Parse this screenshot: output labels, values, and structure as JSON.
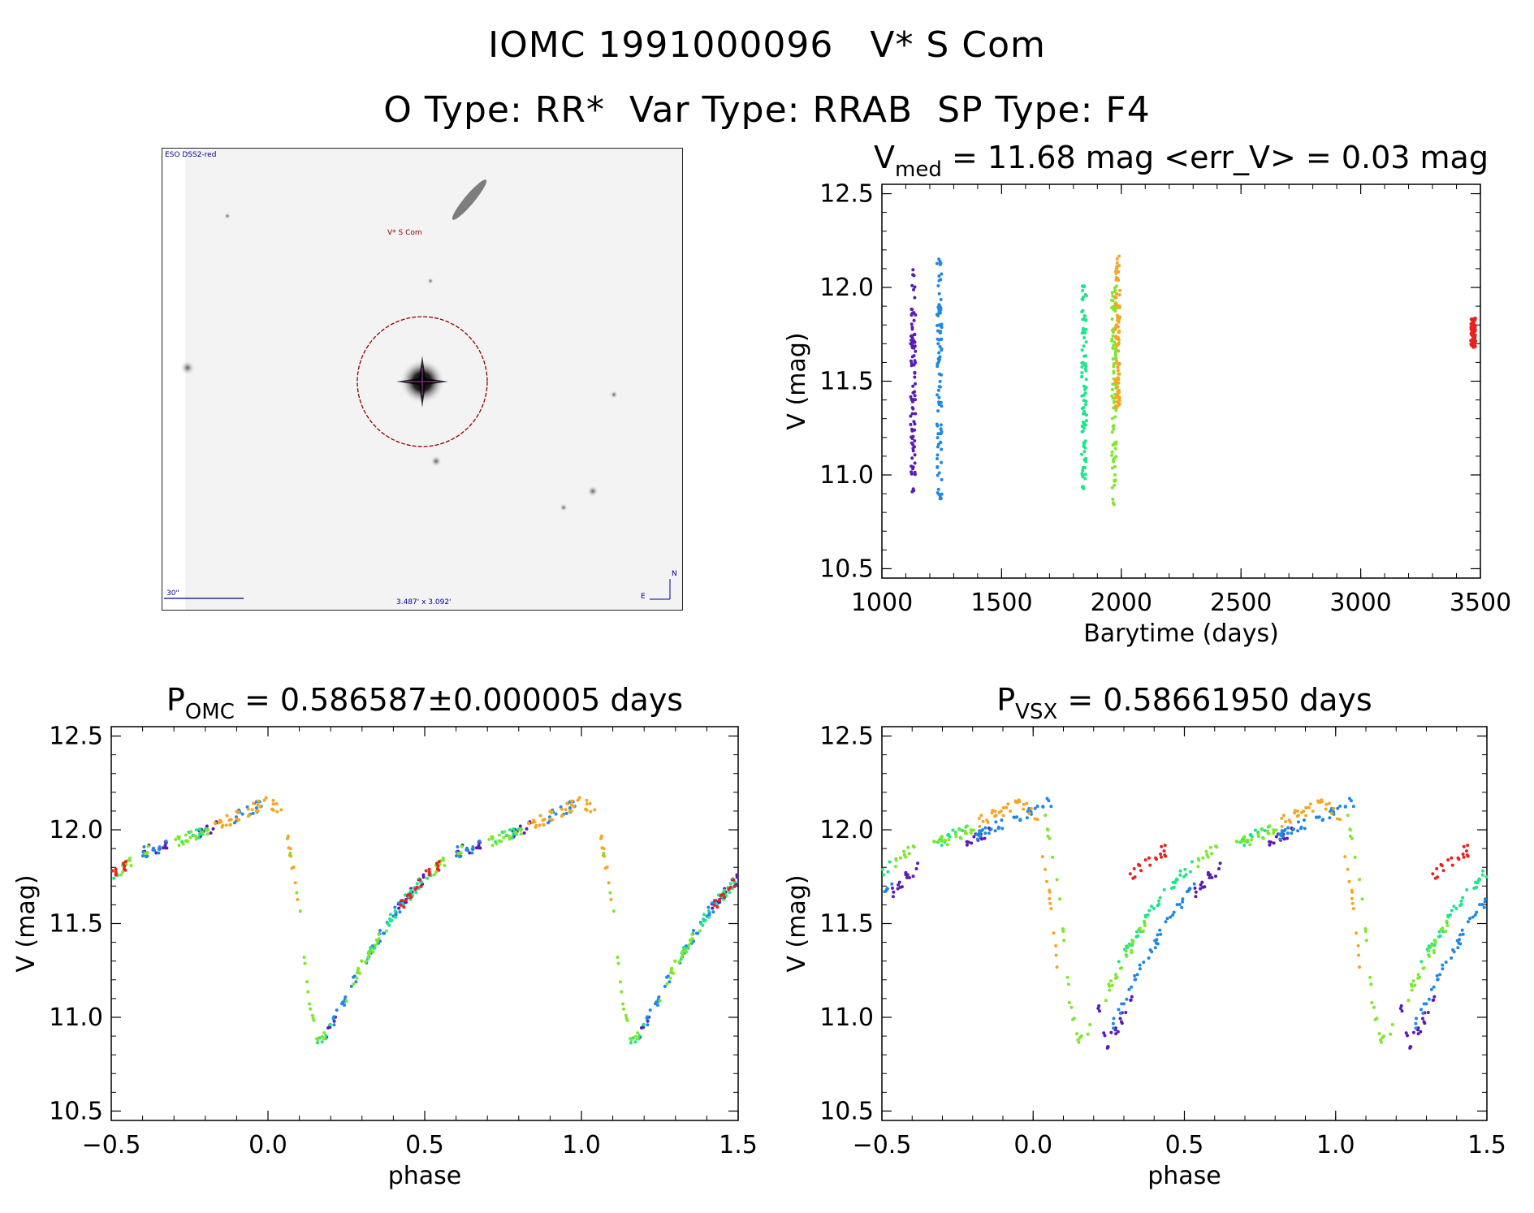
{
  "header": {
    "title_line_1": "IOMC 1991000096   V* S Com",
    "title_line_2": "O Type: RR*  Var Type: RRAB  SP Type: F4"
  },
  "finder": {
    "survey_label": "ESO DSS2-red",
    "target_label": "V* S Com",
    "scale_label": "30\"",
    "fov_label": "3.487' x 3.092'",
    "north_label": "N",
    "east_label": "E",
    "circle_color": "#8b0000",
    "label_color": "#00008b"
  },
  "chart_data": [
    {
      "type": "scatter",
      "id": "lightcurve-time",
      "title_parts": [
        "V",
        "med",
        " = 11.68 mag <err_V> = 0.03 mag"
      ],
      "xlabel": "Barytime (days)",
      "ylabel": "V (mag)",
      "xlim": [
        1000,
        3500
      ],
      "ylim": [
        12.55,
        10.45
      ],
      "xticks": [
        1000,
        1500,
        2000,
        2500,
        3000,
        3500
      ],
      "yticks": [
        10.5,
        11.0,
        11.5,
        12.0,
        12.5
      ],
      "xtick_labels": [
        "1000",
        "1500",
        "2000",
        "2500",
        "3000",
        "3500"
      ],
      "ytick_labels": [
        "10.5",
        "11.0",
        "11.5",
        "12.0",
        "12.5"
      ],
      "series": [
        {
          "name": "epoch-1",
          "color": "#5a1bb5",
          "x": 1130,
          "ymin": 10.9,
          "ymax": 12.1
        },
        {
          "name": "epoch-2",
          "color": "#1e88e5",
          "x": 1240,
          "ymin": 10.84,
          "ymax": 12.16
        },
        {
          "name": "epoch-3",
          "color": "#1de58a",
          "x": 1845,
          "ymin": 10.92,
          "ymax": 12.05
        },
        {
          "name": "epoch-4",
          "color": "#7ee82a",
          "x": 1970,
          "ymin": 10.84,
          "ymax": 12.02
        },
        {
          "name": "epoch-5",
          "color": "#f5a623",
          "x": 1985,
          "ymin": 11.35,
          "ymax": 12.17
        },
        {
          "name": "epoch-6",
          "color": "#e8221e",
          "x": 3470,
          "ymin": 11.68,
          "ymax": 11.84
        }
      ],
      "median_v": 11.68,
      "mean_err_v": 0.03
    },
    {
      "type": "scatter",
      "id": "phase-omc",
      "title_parts": [
        "P",
        "OMC",
        " = 0.586587±0.000005 days"
      ],
      "period_days": 0.586587,
      "period_err_days": 5e-06,
      "xlabel": "phase",
      "ylabel": "V (mag)",
      "xlim": [
        -0.5,
        1.5
      ],
      "ylim": [
        12.55,
        10.45
      ],
      "xticks": [
        -0.5,
        0.0,
        0.5,
        1.0,
        1.5
      ],
      "yticks": [
        10.5,
        11.0,
        11.5,
        12.0,
        12.5
      ],
      "xtick_labels": [
        "−0.5",
        "0.0",
        "0.5",
        "1.0",
        "1.5"
      ],
      "ytick_labels": [
        "10.5",
        "11.0",
        "11.5",
        "12.0",
        "12.5"
      ],
      "template_phase": [
        0.0,
        0.05,
        0.1,
        0.13,
        0.16,
        0.2,
        0.3,
        0.4,
        0.5,
        0.6,
        0.7,
        0.8,
        0.9,
        1.0
      ],
      "template_v": [
        12.15,
        12.08,
        11.6,
        11.1,
        10.85,
        10.95,
        11.28,
        11.55,
        11.75,
        11.88,
        11.93,
        12.0,
        12.07,
        12.15
      ],
      "series": [
        {
          "name": "epoch-1",
          "color": "#5a1bb5",
          "ranges": [
            [
              0.18,
              0.22
            ],
            [
              0.4,
              0.5
            ],
            [
              0.6,
              0.68
            ],
            [
              0.78,
              0.84
            ]
          ]
        },
        {
          "name": "epoch-2",
          "color": "#1e88e5",
          "ranges": [
            [
              0.2,
              0.45
            ],
            [
              0.6,
              0.68
            ],
            [
              0.88,
              0.98
            ]
          ]
        },
        {
          "name": "epoch-3",
          "color": "#1de58a",
          "ranges": [
            [
              0.15,
              0.2
            ],
            [
              0.3,
              0.52
            ],
            [
              0.72,
              0.8
            ]
          ]
        },
        {
          "name": "epoch-4",
          "color": "#7ee82a",
          "ranges": [
            [
              0.06,
              0.18
            ],
            [
              0.25,
              0.38
            ],
            [
              0.52,
              0.62
            ],
            [
              0.7,
              0.82
            ]
          ]
        },
        {
          "name": "epoch-5",
          "color": "#f5a623",
          "ranges": [
            [
              0.0,
              0.1
            ],
            [
              0.82,
              1.0
            ]
          ]
        },
        {
          "name": "epoch-6",
          "color": "#e8221e",
          "ranges": [
            [
              0.42,
              0.55
            ]
          ]
        }
      ]
    },
    {
      "type": "scatter",
      "id": "phase-vsx",
      "title_parts": [
        "P",
        "VSX",
        " = 0.58661950 days"
      ],
      "period_days": 0.5866195,
      "xlabel": "phase",
      "ylabel": "V (mag)",
      "xlim": [
        -0.5,
        1.5
      ],
      "ylim": [
        12.55,
        10.45
      ],
      "xticks": [
        -0.5,
        0.0,
        0.5,
        1.0,
        1.5
      ],
      "yticks": [
        10.5,
        11.0,
        11.5,
        12.0,
        12.5
      ],
      "xtick_labels": [
        "−0.5",
        "0.0",
        "0.5",
        "1.0",
        "1.5"
      ],
      "ytick_labels": [
        "10.5",
        "11.0",
        "11.5",
        "12.0",
        "12.5"
      ],
      "template_phase": [
        0.0,
        0.05,
        0.1,
        0.13,
        0.16,
        0.2,
        0.3,
        0.4,
        0.5,
        0.6,
        0.7,
        0.8,
        0.9,
        1.0
      ],
      "template_v": [
        12.15,
        12.08,
        11.6,
        11.1,
        10.85,
        10.95,
        11.28,
        11.55,
        11.75,
        11.88,
        11.93,
        12.0,
        12.07,
        12.15
      ],
      "series": [
        {
          "name": "epoch-1",
          "color": "#5a1bb5",
          "shift": 0.08,
          "ranges": [
            [
              0.12,
              0.25
            ],
            [
              0.45,
              0.55
            ],
            [
              0.7,
              0.78
            ]
          ]
        },
        {
          "name": "epoch-2",
          "color": "#1e88e5",
          "shift": 0.06,
          "ranges": [
            [
              0.2,
              0.48
            ],
            [
              0.75,
              0.9
            ],
            [
              0.92,
              1.0
            ]
          ]
        },
        {
          "name": "epoch-3",
          "color": "#1de58a",
          "shift": -0.02,
          "ranges": [
            [
              0.3,
              0.55
            ],
            [
              0.7,
              0.8
            ]
          ]
        },
        {
          "name": "epoch-4",
          "color": "#7ee82a",
          "shift": -0.01,
          "ranges": [
            [
              0.05,
              0.2
            ],
            [
              0.25,
              0.4
            ],
            [
              0.55,
              0.62
            ],
            [
              0.68,
              0.82
            ]
          ]
        },
        {
          "name": "epoch-5",
          "color": "#f5a623",
          "shift": -0.04,
          "ranges": [
            [
              0.0,
              0.12
            ],
            [
              0.85,
              1.0
            ]
          ]
        },
        {
          "name": "epoch-6",
          "color": "#e8221e",
          "shift": -0.18,
          "ranges": [
            [
              0.5,
              0.62
            ]
          ]
        }
      ]
    }
  ]
}
